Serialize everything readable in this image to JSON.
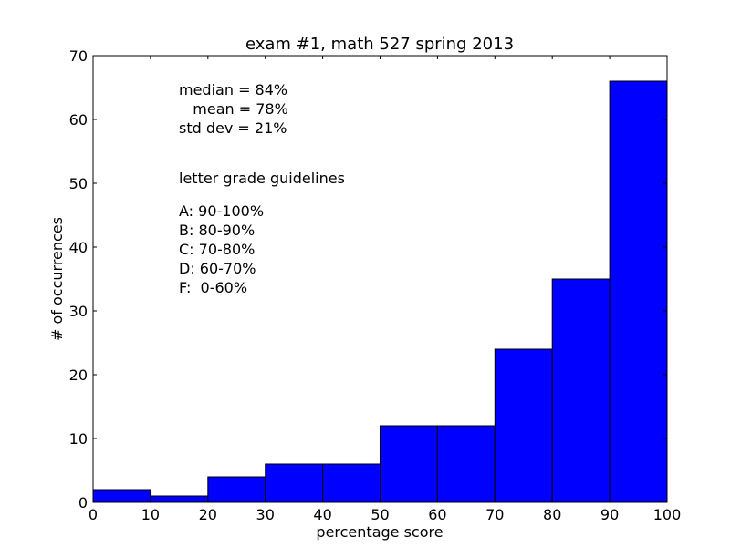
{
  "chart_data": {
    "type": "bar",
    "title": "exam #1, math 527 spring 2013",
    "xlabel": "percentage score",
    "ylabel": "# of occurrences",
    "xlim": [
      0,
      100
    ],
    "ylim": [
      0,
      70
    ],
    "xticks": [
      "0",
      "10",
      "20",
      "30",
      "40",
      "50",
      "60",
      "70",
      "80",
      "90",
      "100"
    ],
    "yticks": [
      "0",
      "10",
      "20",
      "30",
      "40",
      "50",
      "60",
      "70"
    ],
    "bins": [
      {
        "from": 0,
        "to": 10,
        "value": 2
      },
      {
        "from": 10,
        "to": 20,
        "value": 1
      },
      {
        "from": 20,
        "to": 30,
        "value": 4
      },
      {
        "from": 30,
        "to": 40,
        "value": 6
      },
      {
        "from": 40,
        "to": 50,
        "value": 6
      },
      {
        "from": 50,
        "to": 60,
        "value": 12
      },
      {
        "from": 60,
        "to": 70,
        "value": 12
      },
      {
        "from": 70,
        "to": 80,
        "value": 24
      },
      {
        "from": 80,
        "to": 90,
        "value": 35
      },
      {
        "from": 90,
        "to": 100,
        "value": 66
      }
    ],
    "bar_color": "#0000ff",
    "grid": false,
    "annotations": {
      "stats": [
        "median = 84%",
        "   mean = 78%",
        "std dev = 21%"
      ],
      "guidelines_title": "letter grade guidelines",
      "guidelines": [
        "A: 90-100%",
        "B: 80-90%",
        "C: 70-80%",
        "D: 60-70%",
        "F:  0-60%"
      ]
    }
  }
}
